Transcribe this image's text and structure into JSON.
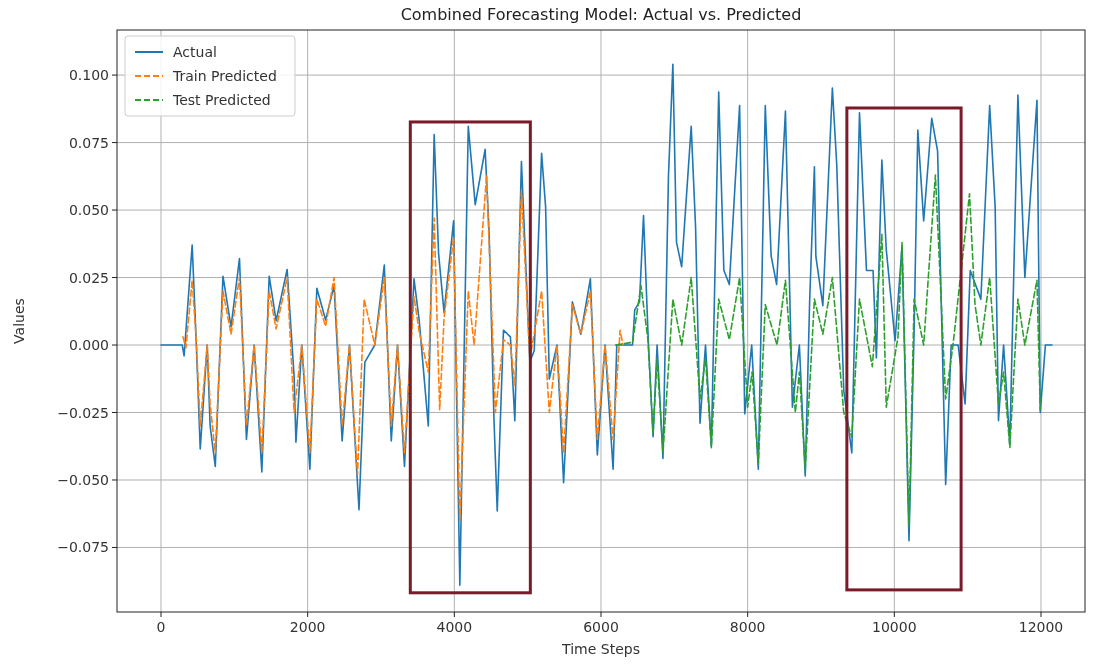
{
  "chart_data": {
    "type": "line",
    "title": "Combined Forecasting Model: Actual vs. Predicted",
    "xlabel": "Time Steps",
    "ylabel": "Values",
    "xlim": [
      -600,
      12600
    ],
    "ylim": [
      -0.0989,
      0.1167
    ],
    "xticks": [
      0,
      2000,
      4000,
      6000,
      8000,
      10000,
      12000
    ],
    "yticks": [
      {
        "value": -0.075,
        "label": "−0.075"
      },
      {
        "value": -0.05,
        "label": "−0.050"
      },
      {
        "value": -0.025,
        "label": "−0.025"
      },
      {
        "value": 0,
        "label": "0.000"
      },
      {
        "value": 0.025,
        "label": "0.025"
      },
      {
        "value": 0.05,
        "label": "0.050"
      },
      {
        "value": 0.075,
        "label": "0.075"
      },
      {
        "value": 0.1,
        "label": "0.100"
      }
    ],
    "grid": true,
    "legend": "top left",
    "series": [
      {
        "name": "Actual",
        "color": "#1f77b4",
        "line_style": "solid",
        "x": [
          0,
          290,
          315,
          425,
          480,
          535,
          630,
          670,
          740,
          845,
          955,
          1070,
          1165,
          1270,
          1375,
          1475,
          1570,
          1720,
          1815,
          1840,
          1920,
          2030,
          2125,
          2245,
          2360,
          2470,
          2570,
          2700,
          2780,
          2915,
          3045,
          3140,
          3225,
          3320,
          3450,
          3520,
          3645,
          3725,
          3785,
          3860,
          3990,
          4075,
          4190,
          4285,
          4420,
          4475,
          4540,
          4585,
          4670,
          4765,
          4825,
          4915,
          5030,
          5090,
          5190,
          5245,
          5295,
          5400,
          5490,
          5610,
          5725,
          5855,
          5950,
          6055,
          6165,
          6215,
          6430,
          6460,
          6525,
          6580,
          6645,
          6710,
          6765,
          6845,
          6920,
          6980,
          7030,
          7100,
          7230,
          7290,
          7350,
          7425,
          7505,
          7605,
          7675,
          7750,
          7890,
          7960,
          8055,
          8145,
          8240,
          8320,
          8395,
          8515,
          8610,
          8705,
          8785,
          8845,
          8910,
          8930,
          9025,
          9155,
          9215,
          9310,
          9420,
          9525,
          9620,
          9710,
          9755,
          9830,
          9890,
          10010,
          10105,
          10200,
          10270,
          10320,
          10400,
          10510,
          10590,
          10700,
          10775,
          10870,
          10965,
          11035,
          11180,
          11300,
          11375,
          11420,
          11490,
          11575,
          11685,
          11780,
          11945,
          11990,
          12060,
          12150
        ],
        "values": [
          0,
          0,
          -0.004,
          0.037,
          0.0015,
          -0.0385,
          0,
          -0.03,
          -0.045,
          0.0255,
          0.0067,
          0.032,
          -0.035,
          0,
          -0.047,
          0.0255,
          0.009,
          0.028,
          -0.0115,
          -0.036,
          0,
          -0.046,
          0.021,
          0.0093,
          0.022,
          -0.0355,
          0,
          -0.061,
          -0.0063,
          0,
          0.0296,
          -0.0355,
          0,
          -0.045,
          0.0245,
          0.0093,
          -0.03,
          0.078,
          0.034,
          0.012,
          0.046,
          -0.089,
          0.081,
          0.052,
          0.0725,
          0.041,
          -0.027,
          -0.0615,
          0.0055,
          0.003,
          -0.028,
          0.068,
          -0.0063,
          -0.002,
          0.071,
          0.051,
          -0.0126,
          0,
          -0.051,
          0.016,
          0.004,
          0.0245,
          -0.0407,
          0,
          -0.046,
          0,
          0,
          0.013,
          0.016,
          0.048,
          0.0015,
          -0.034,
          0,
          -0.042,
          0.0625,
          0.104,
          0.038,
          0.029,
          0.081,
          0.0435,
          -0.029,
          0,
          -0.0375,
          0.0937,
          0.0277,
          0.0224,
          0.0887,
          -0.0255,
          0,
          -0.046,
          0.0887,
          0.033,
          0.0224,
          0.0867,
          -0.023,
          0,
          -0.0485,
          0.016,
          0.066,
          0.0328,
          0.0146,
          0.0952,
          0.0667,
          -0.0167,
          -0.04,
          0.086,
          0.0276,
          0.0276,
          -0.0048,
          0.0685,
          0.0354,
          0.0016,
          0.0367,
          -0.0725,
          0.0055,
          0.0796,
          0.046,
          0.084,
          0.0718,
          -0.0517,
          0,
          0,
          -0.0218,
          0.0276,
          0.017,
          0.0887,
          0.051,
          -0.028,
          0,
          -0.0367,
          0.0926,
          0.025,
          0.0907,
          -0.025,
          0,
          0
        ]
      },
      {
        "name": "Train Predicted",
        "color": "#ff7f0e",
        "line_style": "dashed",
        "x": [
          300,
          340,
          425,
          480,
          535,
          630,
          670,
          740,
          845,
          955,
          1070,
          1165,
          1270,
          1375,
          1475,
          1570,
          1720,
          1815,
          1920,
          2030,
          2125,
          2245,
          2360,
          2470,
          2570,
          2680,
          2770,
          2915,
          3045,
          3140,
          3225,
          3320,
          3450,
          3520,
          3645,
          3725,
          3800,
          3860,
          3990,
          4075,
          4190,
          4270,
          4440,
          4560,
          4670,
          4765,
          4825,
          4915,
          5030,
          5190,
          5295,
          5400,
          5490,
          5610,
          5725,
          5855,
          5950,
          6055,
          6165,
          6260,
          6300
        ],
        "values": [
          0.003,
          -0.001,
          0.024,
          0.002,
          -0.03,
          0,
          -0.022,
          -0.04,
          0.02,
          0.004,
          0.025,
          -0.03,
          0,
          -0.04,
          0.02,
          0.006,
          0.025,
          -0.025,
          0,
          -0.04,
          0.017,
          0.007,
          0.025,
          -0.03,
          0,
          -0.048,
          0.017,
          0,
          0.025,
          -0.03,
          0,
          -0.04,
          0.018,
          0.005,
          -0.01,
          0.047,
          -0.024,
          0.01,
          0.04,
          -0.065,
          0.02,
          0,
          0.063,
          -0.025,
          0.002,
          0,
          -0.015,
          0.057,
          -0.005,
          0.02,
          -0.025,
          0,
          -0.04,
          0.015,
          0.004,
          0.02,
          -0.035,
          0,
          -0.035,
          0.0055,
          0
        ]
      },
      {
        "name": "Test Predicted",
        "color": "#2ca02c",
        "line_style": "dashed",
        "x": [
          6200,
          6430,
          6545,
          6640,
          6710,
          6765,
          6845,
          6980,
          7100,
          7230,
          7350,
          7425,
          7505,
          7605,
          7750,
          7890,
          8000,
          8060,
          8145,
          8240,
          8400,
          8515,
          8650,
          8705,
          8785,
          8910,
          9025,
          9155,
          9310,
          9420,
          9525,
          9700,
          9830,
          9890,
          10050,
          10105,
          10200,
          10270,
          10400,
          10560,
          10700,
          10800,
          11025,
          11100,
          11180,
          11300,
          11420,
          11490,
          11575,
          11685,
          11780,
          11945,
          11990
        ],
        "values": [
          0,
          0.001,
          0.022,
          0.002,
          -0.033,
          -0.005,
          -0.04,
          0.017,
          0,
          0.025,
          -0.02,
          -0.005,
          -0.038,
          0.017,
          0.002,
          0.025,
          -0.023,
          -0.01,
          -0.044,
          0.015,
          0,
          0.024,
          -0.025,
          -0.01,
          -0.046,
          0.017,
          0.004,
          0.025,
          -0.025,
          -0.034,
          0.017,
          -0.008,
          0.041,
          -0.023,
          0.003,
          0.038,
          -0.067,
          0.017,
          0,
          0.063,
          -0.02,
          0,
          0.056,
          0.015,
          0,
          0.025,
          -0.022,
          -0.01,
          -0.038,
          0.017,
          0,
          0.024,
          -0.024
        ]
      }
    ]
  }
}
